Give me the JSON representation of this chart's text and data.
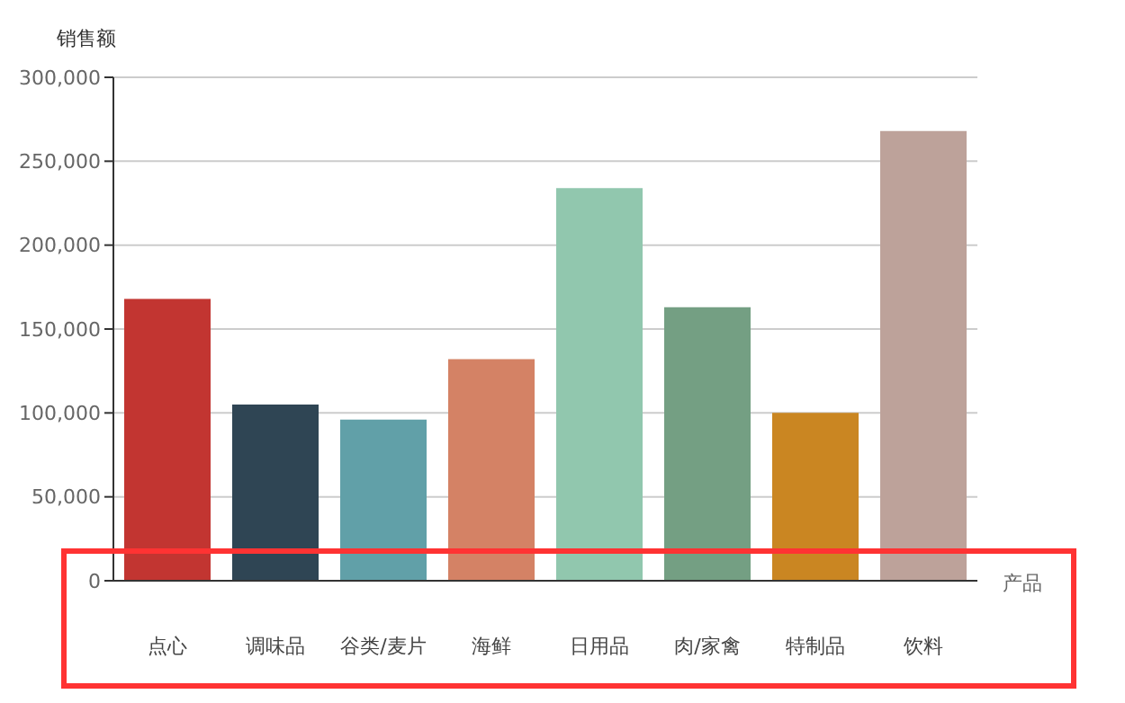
{
  "chart_data": {
    "type": "bar",
    "xlabel": "产品",
    "ylabel": "销售额",
    "categories": [
      "点心",
      "调味品",
      "谷类/麦片",
      "海鲜",
      "日用品",
      "肉/家禽",
      "特制品",
      "饮料"
    ],
    "values": [
      168000,
      105000,
      96000,
      132000,
      234000,
      163000,
      100000,
      268000
    ],
    "colors": [
      "#c23531",
      "#2f4554",
      "#61a0a8",
      "#d48265",
      "#91c7ae",
      "#749f83",
      "#ca8622",
      "#bda29a"
    ],
    "ylim": [
      0,
      300000
    ],
    "yticks": [
      0,
      {
        "value": 50000,
        "label": "50,000"
      },
      {
        "value": 100000,
        "label": "100,000"
      },
      {
        "value": 150000,
        "label": "150,000"
      },
      {
        "value": 200000,
        "label": "200,000"
      },
      {
        "value": 250000,
        "label": "250,000"
      },
      {
        "value": 300000,
        "label": "300,000"
      }
    ],
    "grid": "y"
  }
}
